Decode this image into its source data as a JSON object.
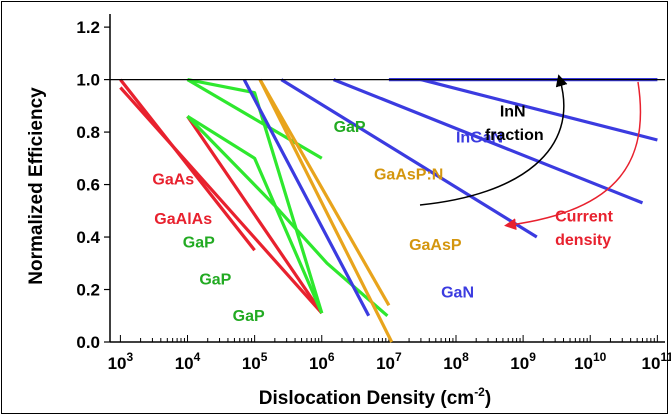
{
  "chart_data": {
    "type": "line",
    "xlabel": "Dislocation Density (cm",
    "xlabel_sup": "-2",
    "xlabel_close": ")",
    "ylabel": "Normalized Efficiency",
    "x_scale": "log",
    "xlim": [
      700,
      130000000000
    ],
    "ylim": [
      0,
      1.25
    ],
    "y_ticks": [
      "0.0",
      "0.2",
      "0.4",
      "0.6",
      "0.8",
      "1.0",
      "1.2"
    ],
    "x_ticks": [
      {
        "base": "10",
        "exp": "3",
        "value": 1000
      },
      {
        "base": "10",
        "exp": "4",
        "value": 10000
      },
      {
        "base": "10",
        "exp": "5",
        "value": 100000
      },
      {
        "base": "10",
        "exp": "6",
        "value": 1000000
      },
      {
        "base": "10",
        "exp": "7",
        "value": 10000000
      },
      {
        "base": "10",
        "exp": "8",
        "value": 100000000
      },
      {
        "base": "10",
        "exp": "9",
        "value": 1000000000
      },
      {
        "base": "10",
        "exp": "10",
        "value": 10000000000
      },
      {
        "base": "10",
        "exp": "11",
        "value": 100000000000
      }
    ],
    "reference_line": 1.0,
    "colors": {
      "GaAs": "#e8212e",
      "GaP": "#2ee82e",
      "GaAsP": "#e8a41c",
      "GaN": "#3b3be0",
      "black": "#000000",
      "current": "#e8212e"
    },
    "series": [
      {
        "group": "GaAs",
        "points": [
          [
            1000,
            1.0
          ],
          [
            100000,
            0.35
          ]
        ]
      },
      {
        "group": "GaAs",
        "points": [
          [
            1000,
            0.97
          ],
          [
            1000000,
            0.11
          ]
        ]
      },
      {
        "group": "GaAs",
        "points": [
          [
            10000,
            0.86
          ],
          [
            1000000,
            0.11
          ]
        ]
      },
      {
        "group": "GaP",
        "points": [
          [
            10000,
            1.0
          ],
          [
            1000000,
            0.7
          ]
        ]
      },
      {
        "group": "GaP",
        "points": [
          [
            10000,
            0.86
          ],
          [
            100000,
            0.7
          ],
          [
            1000000,
            0.11
          ]
        ]
      },
      {
        "group": "GaP",
        "points": [
          [
            10000,
            0.86
          ],
          [
            200000,
            0.52
          ],
          [
            1200000,
            0.3
          ],
          [
            9500000,
            0.1
          ]
        ]
      },
      {
        "group": "GaP",
        "points": [
          [
            10000,
            1.0
          ],
          [
            100000,
            0.95
          ],
          [
            1000000,
            0.11
          ]
        ]
      },
      {
        "group": "GaAsP",
        "points": [
          [
            120000,
            1.0
          ],
          [
            10000000,
            0.14
          ]
        ]
      },
      {
        "group": "GaAsP",
        "points": [
          [
            120000,
            1.0
          ],
          [
            11000000,
            0.0
          ]
        ]
      },
      {
        "group": "GaN",
        "points": [
          [
            70000,
            1.0
          ],
          [
            5000000,
            0.1
          ]
        ]
      },
      {
        "group": "GaN",
        "points": [
          [
            250000,
            1.0
          ],
          [
            1600000000,
            0.4
          ]
        ]
      },
      {
        "group": "GaN",
        "points": [
          [
            1500000,
            1.0
          ],
          [
            60000000000,
            0.53
          ]
        ]
      },
      {
        "group": "GaN",
        "points": [
          [
            30000000,
            1.0
          ],
          [
            100000000000,
            0.77
          ]
        ]
      },
      {
        "group": "GaN",
        "points": [
          [
            10000000,
            1.0
          ],
          [
            100000000000,
            1.0
          ]
        ]
      },
      {
        "group": "black",
        "points": [
          [
            700,
            1.0
          ],
          [
            130000000000,
            1.0
          ]
        ],
        "width": 1.2
      }
    ],
    "labels": [
      {
        "text": "GaAs",
        "color": "#e8212e",
        "x": 3000,
        "y": 0.6
      },
      {
        "text": "GaAlAs",
        "color": "#e8212e",
        "x": 3200,
        "y": 0.45
      },
      {
        "text": "GaP",
        "color": "#22aa22",
        "x": 1500000,
        "y": 0.8
      },
      {
        "text": "GaP",
        "color": "#22aa22",
        "x": 8500,
        "y": 0.36
      },
      {
        "text": "GaP",
        "color": "#22aa22",
        "x": 15000,
        "y": 0.22
      },
      {
        "text": "GaP",
        "color": "#22aa22",
        "x": 47000,
        "y": 0.08
      },
      {
        "text": "GaAsP:N",
        "color": "#d4960e",
        "x": 6000000,
        "y": 0.62
      },
      {
        "text": "GaAsP",
        "color": "#d4960e",
        "x": 20000000,
        "y": 0.35
      },
      {
        "text": "GaN",
        "color": "#3b3be0",
        "x": 60000000,
        "y": 0.17
      },
      {
        "text": "InGaN",
        "color": "#3b3be0",
        "x": 100000000,
        "y": 0.76
      },
      {
        "text": "InN",
        "color": "#000000",
        "x": 450000000,
        "y": 0.86
      },
      {
        "text": "fraction",
        "color": "#000000",
        "x": 270000000,
        "y": 0.77
      },
      {
        "text": "Current",
        "color": "#e8212e",
        "x": 3000000000,
        "y": 0.46
      },
      {
        "text": "density",
        "color": "#e8212e",
        "x": 3000000000,
        "y": 0.37
      }
    ]
  }
}
